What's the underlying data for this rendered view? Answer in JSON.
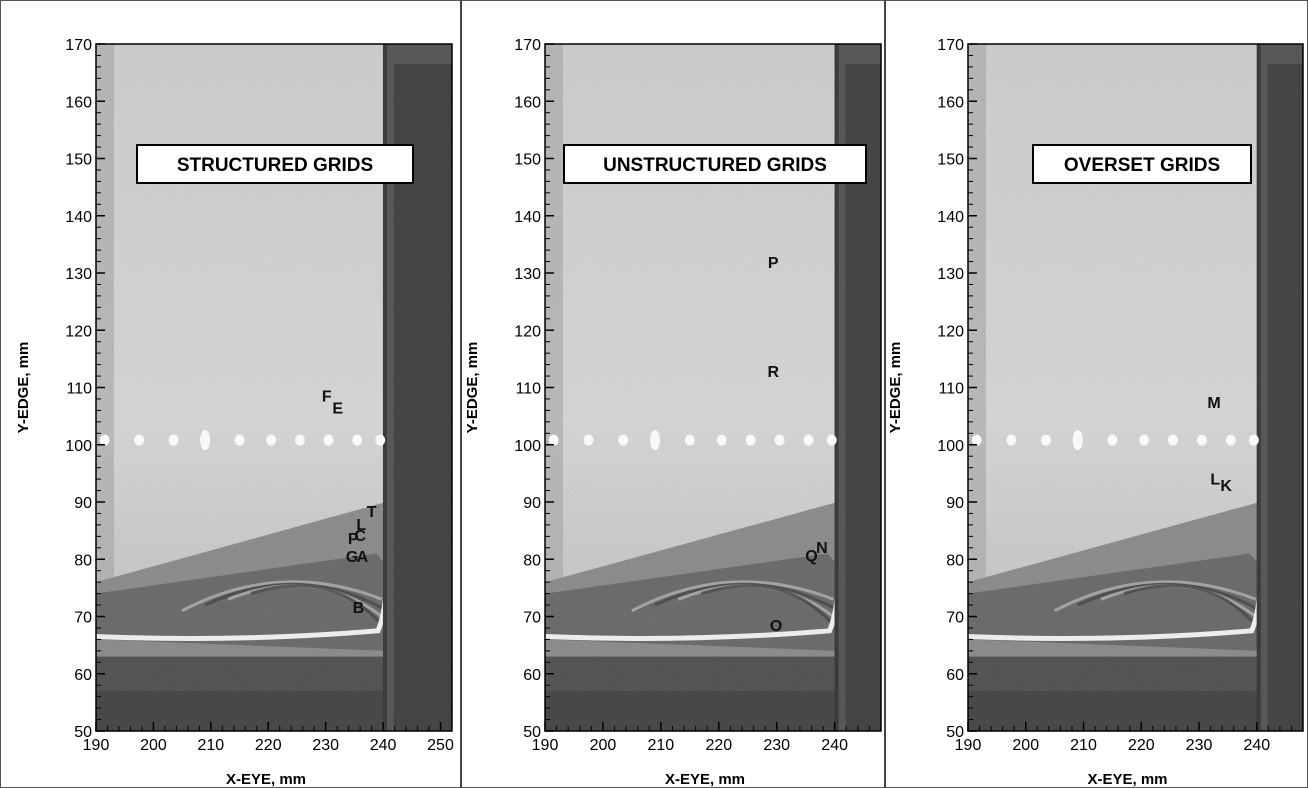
{
  "chart_data": [
    {
      "type": "scatter",
      "title": "STRUCTURED GRIDS",
      "xlabel": "X-EYE, mm",
      "ylabel": "Y-EDGE, mm",
      "xlim": [
        190,
        252
      ],
      "ylim": [
        50,
        170
      ],
      "xticks": [
        "190",
        "200",
        "210",
        "220",
        "230",
        "240",
        "250"
      ],
      "yticks": [
        "50",
        "60",
        "70",
        "80",
        "90",
        "100",
        "110",
        "120",
        "130",
        "140",
        "150",
        "160",
        "170"
      ],
      "points": [
        {
          "label": "F",
          "x": 230.2,
          "y": 108.6
        },
        {
          "label": "E",
          "x": 232.1,
          "y": 106.5
        },
        {
          "label": "T",
          "x": 238.0,
          "y": 88.4
        },
        {
          "label": "L",
          "x": 236.2,
          "y": 86.2
        },
        {
          "label": "C",
          "x": 236.0,
          "y": 84.2
        },
        {
          "label": "P",
          "x": 234.8,
          "y": 83.7
        },
        {
          "label": "G",
          "x": 234.6,
          "y": 80.6
        },
        {
          "label": "A",
          "x": 236.4,
          "y": 80.6
        },
        {
          "label": "B",
          "x": 235.7,
          "y": 71.7
        }
      ]
    },
    {
      "type": "scatter",
      "title": "UNSTRUCTURED GRIDS",
      "xlabel": "X-EYE, mm",
      "ylabel": "Y-EDGE, mm",
      "xlim": [
        190,
        248
      ],
      "ylim": [
        50,
        170
      ],
      "xticks": [
        "190",
        "200",
        "210",
        "220",
        "230",
        "240"
      ],
      "yticks": [
        "50",
        "60",
        "70",
        "80",
        "90",
        "100",
        "110",
        "120",
        "130",
        "140",
        "150",
        "160",
        "170"
      ],
      "points": [
        {
          "label": "P",
          "x": 229.4,
          "y": 131.9
        },
        {
          "label": "R",
          "x": 229.4,
          "y": 112.9
        },
        {
          "label": "N",
          "x": 237.8,
          "y": 82.1
        },
        {
          "label": "Q",
          "x": 236.0,
          "y": 80.7
        },
        {
          "label": "O",
          "x": 229.9,
          "y": 68.5
        }
      ]
    },
    {
      "type": "scatter",
      "title": "OVERSET GRIDS",
      "xlabel": "X-EYE, mm",
      "ylabel": "Y-EDGE, mm",
      "xlim": [
        190,
        248
      ],
      "ylim": [
        50,
        170
      ],
      "xticks": [
        "190",
        "200",
        "210",
        "220",
        "230",
        "240"
      ],
      "yticks": [
        "50",
        "60",
        "70",
        "80",
        "90",
        "100",
        "110",
        "120",
        "130",
        "140",
        "150",
        "160",
        "170"
      ],
      "points": [
        {
          "label": "M",
          "x": 232.6,
          "y": 107.5
        },
        {
          "label": "L",
          "x": 232.8,
          "y": 94.1
        },
        {
          "label": "K",
          "x": 234.7,
          "y": 93.0
        }
      ]
    }
  ]
}
